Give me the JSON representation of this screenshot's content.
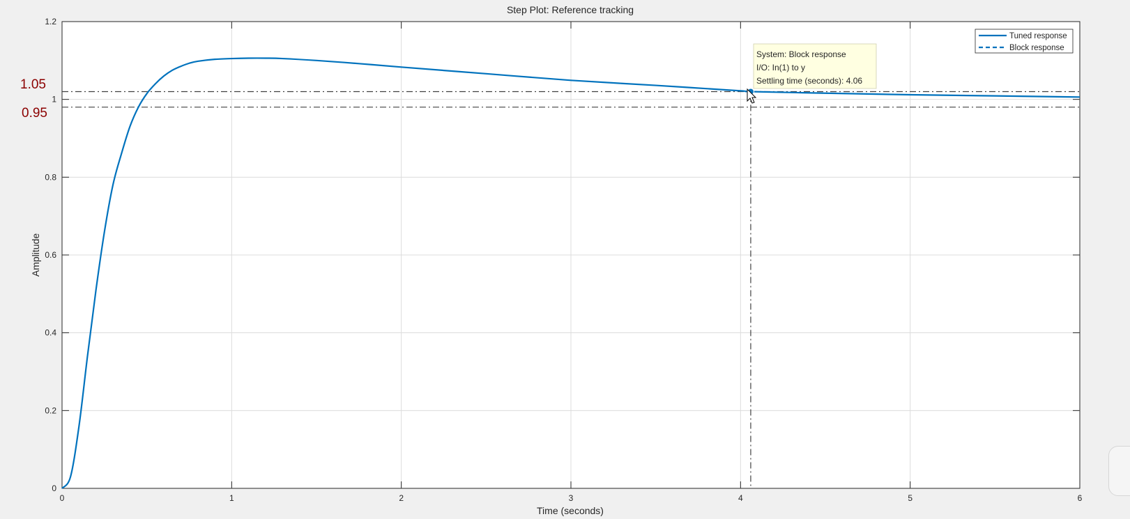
{
  "chart_data": {
    "type": "line",
    "title": "Step Plot: Reference tracking",
    "xlabel": "Time (seconds)",
    "ylabel": "Amplitude",
    "xlim": [
      0,
      6
    ],
    "ylim": [
      0,
      1.2
    ],
    "x_ticks": [
      0,
      1,
      2,
      3,
      4,
      5,
      6
    ],
    "x_tick_labels": [
      "0",
      "1",
      "2",
      "3",
      "4",
      "5",
      "6"
    ],
    "y_ticks": [
      0,
      0.2,
      0.4,
      0.6,
      0.8,
      1,
      1.2
    ],
    "y_tick_labels": [
      "0",
      "0.2",
      "0.4",
      "0.6",
      "0.8",
      "1",
      "1.2"
    ],
    "grid": true,
    "legend_position": "top-right",
    "series": [
      {
        "name": "Tuned response",
        "style": "solid",
        "color": "#0072bd",
        "x": [
          0,
          0.05,
          0.1,
          0.15,
          0.2,
          0.25,
          0.3,
          0.35,
          0.4,
          0.45,
          0.5,
          0.55,
          0.6,
          0.65,
          0.7,
          0.75,
          0.8,
          0.9,
          1.0,
          1.1,
          1.2,
          1.3,
          1.5,
          1.75,
          2.0,
          2.5,
          3.0,
          3.5,
          4.0,
          4.06,
          4.5,
          5.0,
          5.5,
          6.0
        ],
        "y": [
          0,
          0.03,
          0.16,
          0.34,
          0.51,
          0.66,
          0.78,
          0.86,
          0.93,
          0.98,
          1.015,
          1.04,
          1.06,
          1.075,
          1.085,
          1.093,
          1.098,
          1.103,
          1.105,
          1.106,
          1.106,
          1.105,
          1.1,
          1.092,
          1.083,
          1.066,
          1.049,
          1.036,
          1.022,
          1.02,
          1.016,
          1.012,
          1.009,
          1.006
        ]
      },
      {
        "name": "Block response",
        "style": "dashed",
        "color": "#0072bd",
        "x": [],
        "y": []
      }
    ],
    "reference_lines": {
      "horizontal": [
        1.02,
        0.98
      ],
      "vertical": [
        4.06
      ],
      "style": "dash-dot",
      "color": "#404040"
    },
    "marker": {
      "x": 4.06,
      "y": 1.02,
      "color": "#0072bd"
    },
    "datatip": {
      "lines": [
        "System: Block response",
        "I/O: In(1) to y",
        "Settling time (seconds): 4.06"
      ]
    },
    "annotations": [
      {
        "text": "1.05",
        "color": "#8b0000"
      },
      {
        "text": "0.95",
        "color": "#8b0000"
      }
    ]
  }
}
